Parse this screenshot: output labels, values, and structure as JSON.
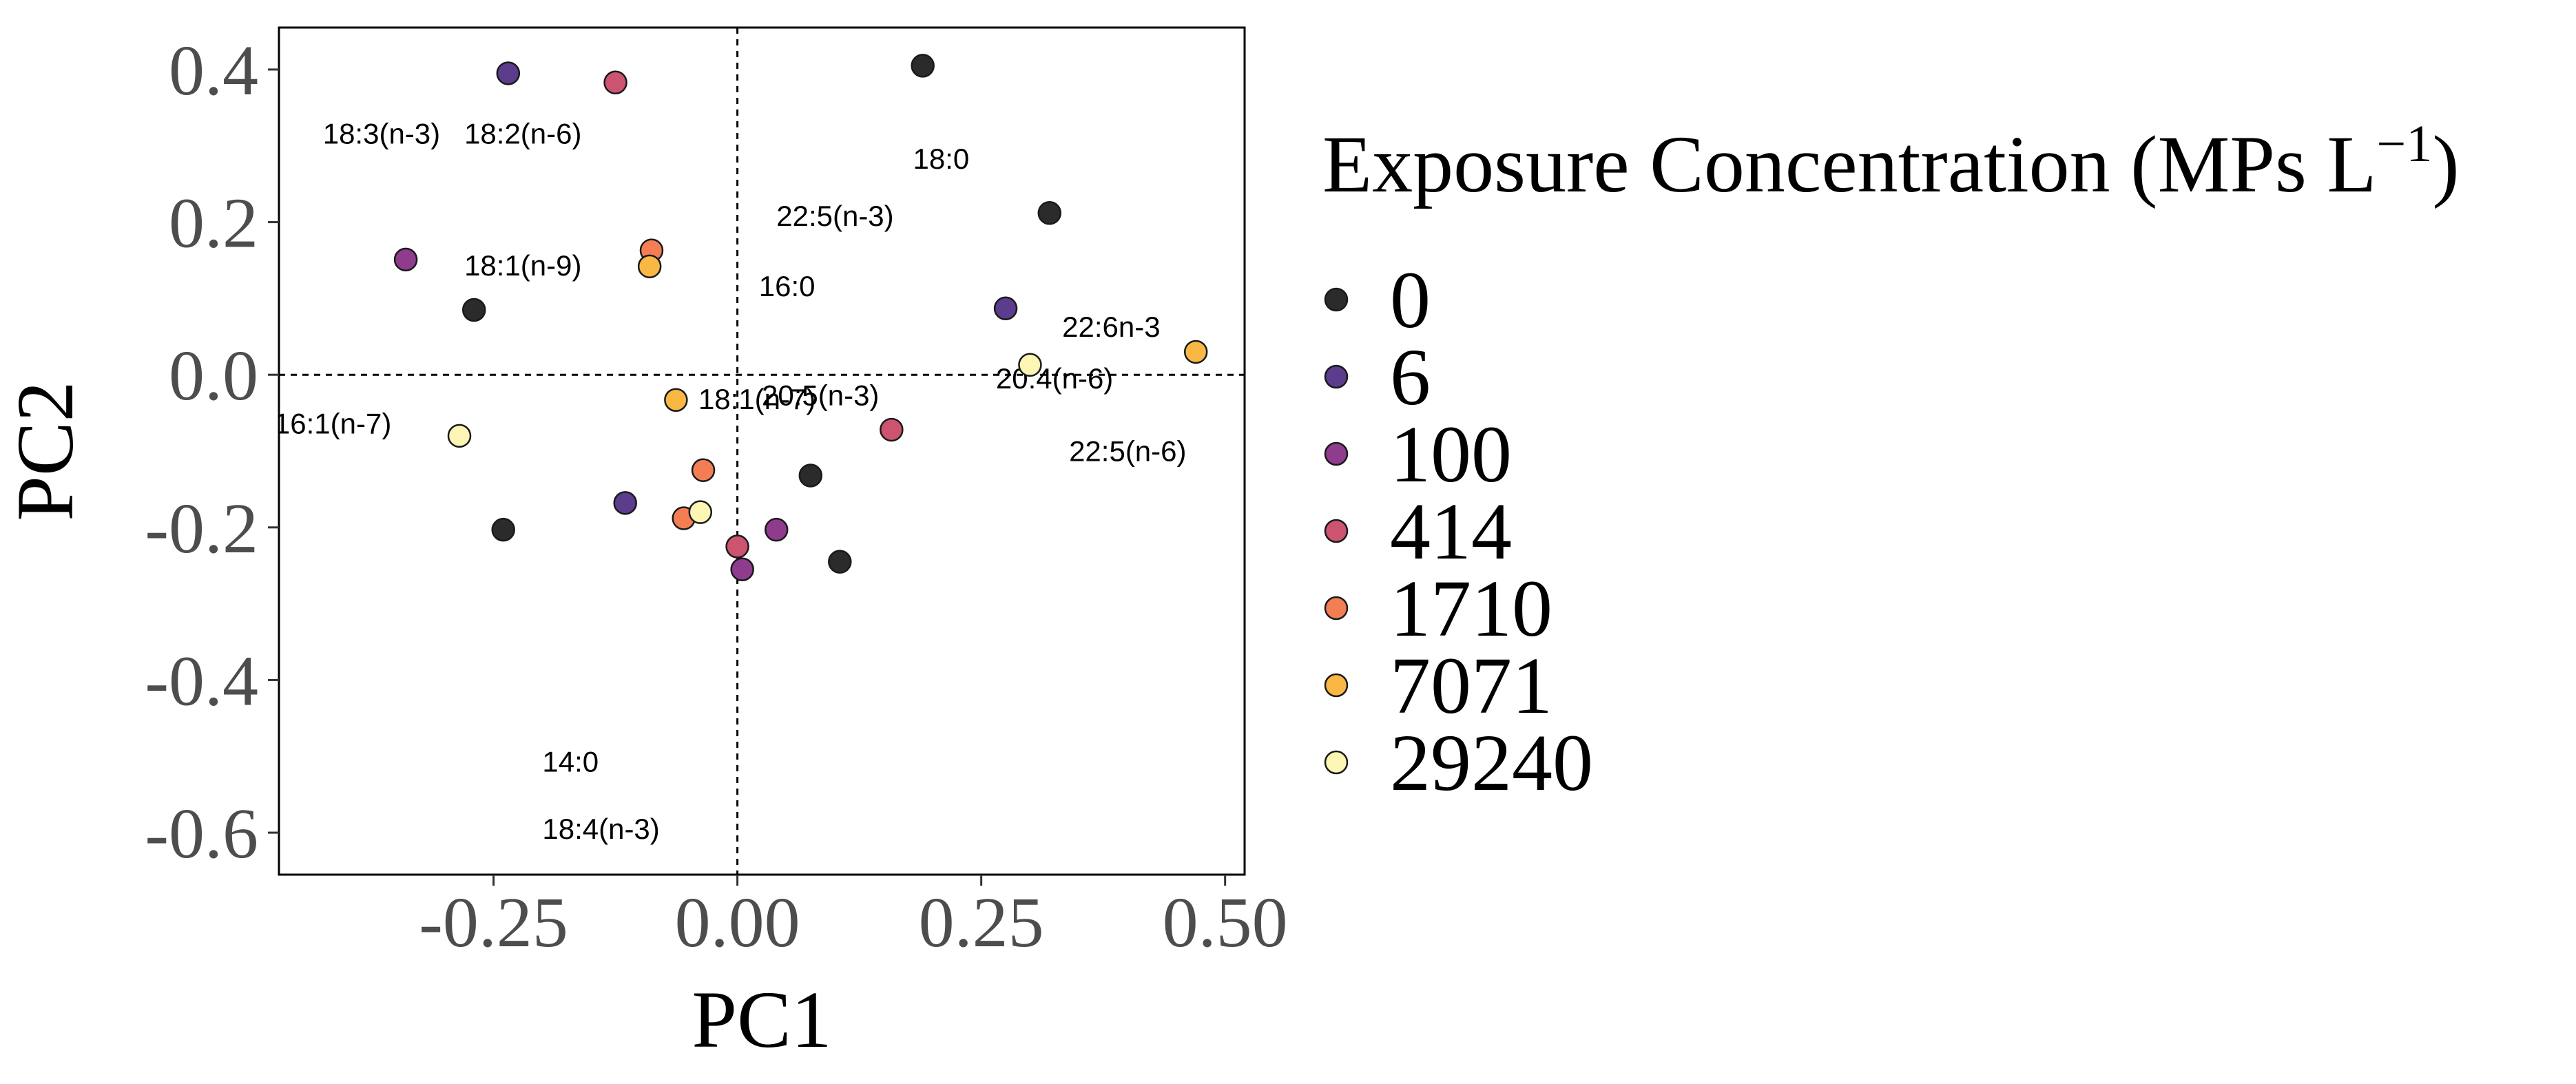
{
  "chart_data": {
    "type": "scatter",
    "title": "",
    "xlabel": "PC1",
    "ylabel": "PC2",
    "xlim": [
      -0.47,
      0.52
    ],
    "ylim": [
      -0.655,
      0.455
    ],
    "x_ticks": [
      -0.25,
      0.0,
      0.25,
      0.5
    ],
    "x_tick_labels": [
      "-0.25",
      "0.00",
      "0.25",
      "0.50"
    ],
    "y_ticks": [
      0.4,
      0.2,
      0.0,
      -0.2,
      -0.4,
      -0.6
    ],
    "y_tick_labels": [
      "0.4",
      "0.2",
      "0.0",
      "-0.2",
      "-0.4",
      "-0.6"
    ],
    "grid": false,
    "reference_lines": {
      "x": 0,
      "y": 0,
      "style": "dashed"
    },
    "legend": {
      "title": "Exposure Concentration (MPs L",
      "title_superscript": "−1",
      "title_close": ")",
      "placement": "right"
    },
    "series": [
      {
        "name": "0",
        "color": "#2b2b2b",
        "points": [
          {
            "x": 0.19,
            "y": 0.405
          },
          {
            "x": 0.32,
            "y": 0.212
          },
          {
            "x": -0.27,
            "y": 0.085
          },
          {
            "x": -0.24,
            "y": -0.203
          },
          {
            "x": 0.075,
            "y": -0.132
          },
          {
            "x": 0.105,
            "y": -0.245
          }
        ]
      },
      {
        "name": "6",
        "color": "#5c3c8c",
        "points": [
          {
            "x": -0.235,
            "y": 0.395
          },
          {
            "x": 0.275,
            "y": 0.087
          },
          {
            "x": -0.115,
            "y": -0.168
          }
        ]
      },
      {
        "name": "100",
        "color": "#8f3b8e",
        "points": [
          {
            "x": -0.34,
            "y": 0.151
          },
          {
            "x": 0.04,
            "y": -0.203
          },
          {
            "x": 0.005,
            "y": -0.255
          }
        ]
      },
      {
        "name": "414",
        "color": "#cd5470",
        "points": [
          {
            "x": -0.125,
            "y": 0.383
          },
          {
            "x": 0.158,
            "y": -0.072
          },
          {
            "x": 0.0,
            "y": -0.225
          }
        ]
      },
      {
        "name": "1710",
        "color": "#f47e53",
        "points": [
          {
            "x": -0.088,
            "y": 0.163
          },
          {
            "x": -0.035,
            "y": -0.125
          },
          {
            "x": -0.055,
            "y": -0.188
          }
        ]
      },
      {
        "name": "7071",
        "color": "#f9b844",
        "points": [
          {
            "x": -0.09,
            "y": 0.142
          },
          {
            "x": -0.063,
            "y": -0.033
          },
          {
            "x": 0.47,
            "y": 0.03
          }
        ]
      },
      {
        "name": "29240",
        "color": "#fcf5b4",
        "points": [
          {
            "x": 0.3,
            "y": 0.013
          },
          {
            "x": -0.285,
            "y": -0.08
          },
          {
            "x": -0.038,
            "y": -0.18
          }
        ]
      }
    ],
    "annotations": [
      {
        "text": "18:3(n-3)",
        "x": -0.425,
        "y": 0.303
      },
      {
        "text": "18:2(n-6)",
        "x": -0.28,
        "y": 0.303
      },
      {
        "text": "18:0",
        "x": 0.18,
        "y": 0.27
      },
      {
        "text": "22:5(n-3)",
        "x": 0.04,
        "y": 0.195
      },
      {
        "text": "18:1(n-9)",
        "x": -0.28,
        "y": 0.13
      },
      {
        "text": "16:0",
        "x": 0.022,
        "y": 0.103
      },
      {
        "text": "22:6n-3",
        "x": 0.333,
        "y": 0.05
      },
      {
        "text": "20:4(n-6)",
        "x": 0.265,
        "y": -0.018
      },
      {
        "text": "18:1(n-7)",
        "x": -0.04,
        "y": -0.045
      },
      {
        "text": "20:5(n-3)",
        "x": 0.025,
        "y": -0.04
      },
      {
        "text": "16:1(n-7)",
        "x": -0.475,
        "y": -0.077
      },
      {
        "text": "22:5(n-6)",
        "x": 0.34,
        "y": -0.113
      },
      {
        "text": "14:0",
        "x": -0.2,
        "y": -0.52
      },
      {
        "text": "18:4(n-3)",
        "x": -0.2,
        "y": -0.608
      }
    ]
  }
}
